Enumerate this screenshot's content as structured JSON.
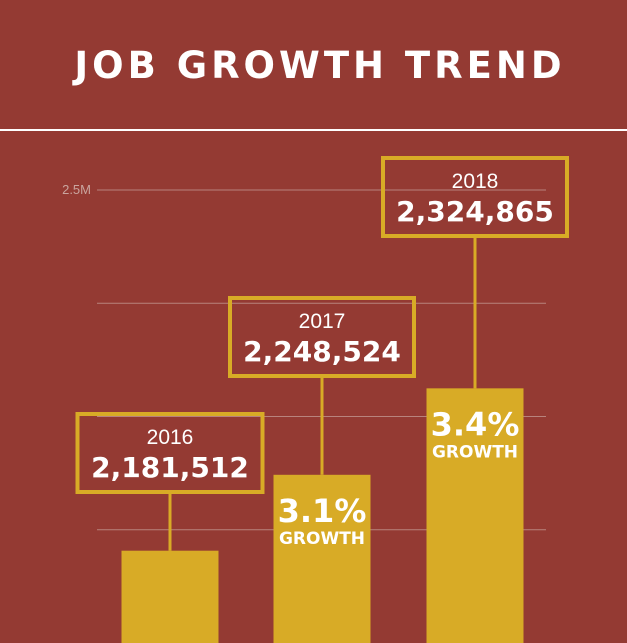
{
  "colors": {
    "background": "#943a33",
    "bar": "#d8ab26",
    "callout_border": "#d8ab26",
    "gridline": "#b8837d",
    "text": "#ffffff"
  },
  "chart_data": {
    "type": "bar",
    "title": "JOB GROWTH TREND",
    "categories": [
      "2016",
      "2017",
      "2018"
    ],
    "values": [
      2181512,
      2248524,
      2324865
    ],
    "value_labels": [
      "2,181,512",
      "2,248,524",
      "2,324,865"
    ],
    "growth_labels": [
      null,
      "3.1%",
      "3.4%"
    ],
    "growth_word": "GROWTH",
    "y_tick_label": "2.5M",
    "ylim": [
      2100000,
      2500000
    ],
    "grid": true,
    "xlabel": "",
    "ylabel": ""
  }
}
